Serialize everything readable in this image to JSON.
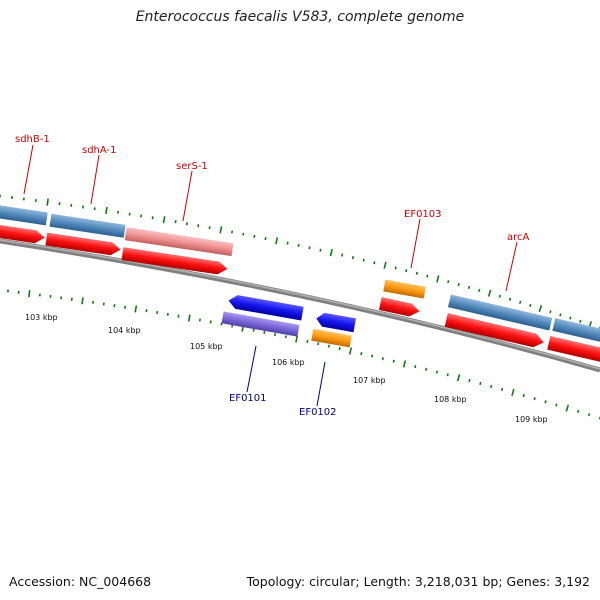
{
  "title": "Enterococcus faecalis V583, complete genome",
  "accession": "Accession: NC_004668",
  "topology": "Topology: circular; Length: 3,218,031 bp; Genes: 3,192",
  "colors": {
    "cds_blue": "#4f86b9",
    "cds_red": "#ff1010",
    "rna_pink": "#f09090",
    "gene_blue": "#1515ee",
    "gene_purple": "#7b68d8",
    "gene_orange": "#ff9a10",
    "backbone": "#808080",
    "ticks": "#0d7d0d",
    "label_red": "#cc0000",
    "label_blue": "#00007a"
  },
  "scale_labels": [
    "103 kbp",
    "104 kbp",
    "105 kbp",
    "106 kbp",
    "107 kbp",
    "108 kbp",
    "109 kbp"
  ],
  "gene_labels_top": [
    "sdhB-1",
    "sdhA-1",
    "serS-1",
    "EF0103",
    "arcA"
  ],
  "gene_labels_bottom": [
    "EF0101",
    "EF0102"
  ]
}
